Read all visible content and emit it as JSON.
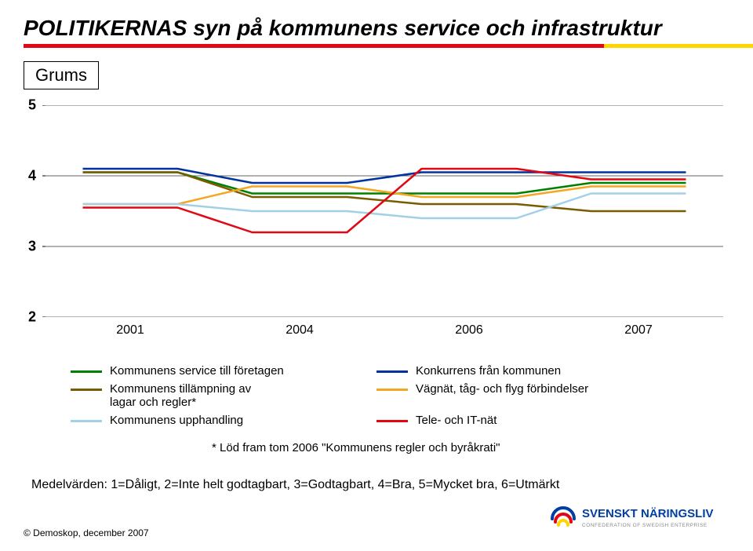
{
  "title": "POLITIKERNAS syn på kommunens service och infrastruktur",
  "title_underline_colors": [
    "#e30613",
    "#ffd500"
  ],
  "municipality": "Grums",
  "chart": {
    "type": "line",
    "background_color": "#ffffff",
    "grid_color": "#666666",
    "axis_color": "#000000",
    "ylim": [
      2,
      5
    ],
    "yticks": [
      2,
      3,
      4,
      5
    ],
    "xcategories": [
      "2001",
      "2004",
      "2006",
      "2007"
    ],
    "ytick_fontsize": 18,
    "xtick_fontsize": 16,
    "line_width": 2.5,
    "series": [
      {
        "label": "Kommunens service till företagen",
        "color": "#008000",
        "values": [
          4.05,
          3.75,
          3.75,
          3.9
        ]
      },
      {
        "label": "Konkurrens från kommunen",
        "color": "#0033a0",
        "values": [
          4.1,
          3.9,
          4.05,
          4.05
        ]
      },
      {
        "label": "Kommunens tillämpning av lagar och regler*",
        "color": "#7a5c00",
        "values": [
          4.05,
          3.7,
          3.6,
          3.5
        ]
      },
      {
        "label": "Vägnät, tåg- och flyg förbindelser",
        "color": "#f5a623",
        "values": [
          3.6,
          3.85,
          3.7,
          3.85
        ]
      },
      {
        "label": "Kommunens upphandling",
        "color": "#a3d0e6",
        "values": [
          3.6,
          3.5,
          3.4,
          3.75
        ]
      },
      {
        "label": "Tele- och IT-nät",
        "color": "#e30613",
        "values": [
          3.55,
          3.2,
          4.1,
          3.95
        ]
      }
    ]
  },
  "legend": {
    "left": [
      {
        "label": "Kommunens service till företagen",
        "color": "#008000"
      },
      {
        "label": "Kommunens tillämpning av\nlagar och regler*",
        "color": "#7a5c00"
      },
      {
        "label": "Kommunens upphandling",
        "color": "#a3d0e6"
      }
    ],
    "right": [
      {
        "label": "Konkurrens från kommunen",
        "color": "#0033a0"
      },
      {
        "label": "Vägnät, tåg- och flyg förbindelser",
        "color": "#f5a623"
      },
      {
        "label": "Tele- och IT-nät",
        "color": "#e30613"
      }
    ]
  },
  "footnote1": "* Löd fram tom 2006 \"Kommunens regler och byråkrati\"",
  "footnote2": "Medelvärden: 1=Dåligt, 2=Inte helt godtagbart, 3=Godtagbart, 4=Bra, 5=Mycket bra, 6=Utmärkt",
  "copyright": "© Demoskop, december 2007",
  "logo": {
    "main": "SVENSKT NÄRINGSLIV",
    "main_color": "#003da5",
    "sub": "CONFEDERATION OF SWEDISH ENTERPRISE",
    "sub_color": "#8a8a8a",
    "swirl_colors": [
      "#e30613",
      "#ffd500",
      "#003da5"
    ]
  }
}
